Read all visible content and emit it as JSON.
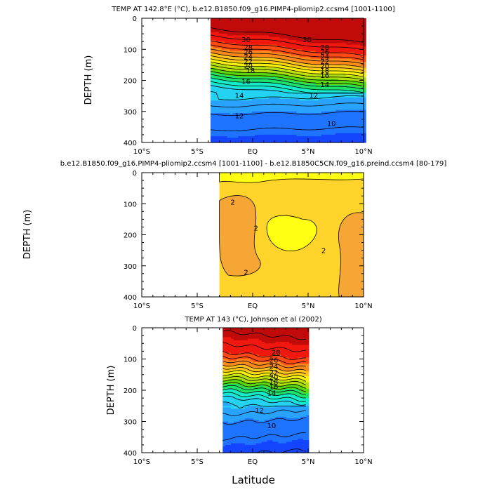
{
  "chart_data": [
    {
      "type": "contour",
      "title": "TEMP AT 142.8°E (°C), b.e12.B1850.f09_g16.PIMP4-pliomip2.ccsm4 [1001-1100]",
      "ylabel": "DEPTH (m)",
      "xlabel": "",
      "xlim": [
        -10,
        10
      ],
      "ylim": [
        400,
        0
      ],
      "x_ticks": [
        "10°S",
        "5°S",
        "EQ",
        "5°N",
        "10°N"
      ],
      "y_ticks": [
        "0",
        "100",
        "200",
        "300",
        "400"
      ],
      "data_x_range": [
        -3.8,
        10
      ],
      "contour_labels": [
        "30",
        "30",
        "28",
        "26",
        "24",
        "22",
        "20",
        "28",
        "26",
        "24",
        "22",
        "20",
        "18",
        "16",
        "14",
        "12",
        "18",
        "16",
        "14",
        "12",
        "10"
      ],
      "profile": {
        "depth": [
          0,
          40,
          80,
          100,
          120,
          140,
          160,
          180,
          200,
          230,
          260,
          300,
          350,
          400
        ],
        "temperature": [
          30.5,
          30.2,
          28.5,
          27,
          25.5,
          23.5,
          21.5,
          19.5,
          17.5,
          15,
          13.5,
          12,
          11,
          10
        ]
      }
    },
    {
      "type": "contour",
      "title": "b.e12.B1850.f09_g16.PIMP4-pliomip2.ccsm4 [1001-1100] - b.e12.B1850C5CN.f09_g16.preind.ccsm4 [80-179]",
      "ylabel": "DEPTH (m)",
      "xlabel": "",
      "xlim": [
        -10,
        10
      ],
      "ylim": [
        400,
        0
      ],
      "x_ticks": [
        "10°S",
        "5°S",
        "EQ",
        "5°N",
        "10°N"
      ],
      "y_ticks": [
        "0",
        "100",
        "200",
        "300",
        "400"
      ],
      "data_x_range": [
        -3,
        10
      ],
      "contour_labels": [
        "2",
        "2",
        "2",
        "2"
      ],
      "levels": [
        1.5,
        2,
        2.5
      ]
    },
    {
      "type": "contour",
      "title": "TEMP AT 143 (°C), Johnson et al (2002)",
      "ylabel": "DEPTH (m)",
      "xlabel": "Latitude",
      "xlim": [
        -10,
        10
      ],
      "ylim": [
        400,
        0
      ],
      "x_ticks": [
        "10°S",
        "5°S",
        "EQ",
        "5°N",
        "10°N"
      ],
      "y_ticks": [
        "0",
        "100",
        "200",
        "300",
        "400"
      ],
      "data_x_range": [
        -2.7,
        5
      ],
      "contour_labels": [
        "28",
        "26",
        "24",
        "22",
        "20",
        "18",
        "16",
        "14",
        "12",
        "10"
      ],
      "profile": {
        "depth": [
          0,
          40,
          80,
          100,
          120,
          140,
          160,
          180,
          200,
          230,
          260,
          300,
          350,
          400
        ],
        "temperature": [
          30.5,
          29.5,
          28.5,
          27,
          25.5,
          23.5,
          21.5,
          19.5,
          17.5,
          15,
          13.5,
          12,
          11,
          10
        ]
      }
    }
  ],
  "colors": {
    "ramp": [
      "#1445ff",
      "#1f74ff",
      "#29a3ff",
      "#24d2f2",
      "#15ebc8",
      "#1ee36a",
      "#5ad80e",
      "#b3e00b",
      "#f7f00c",
      "#ffc41a",
      "#ff8a1c",
      "#ff4a16",
      "#f0180f",
      "#d40f0f",
      "#c10b0b"
    ],
    "diff_high": "#f5a634",
    "diff_mid": "#ffd42a",
    "diff_low": "#ffff14"
  }
}
